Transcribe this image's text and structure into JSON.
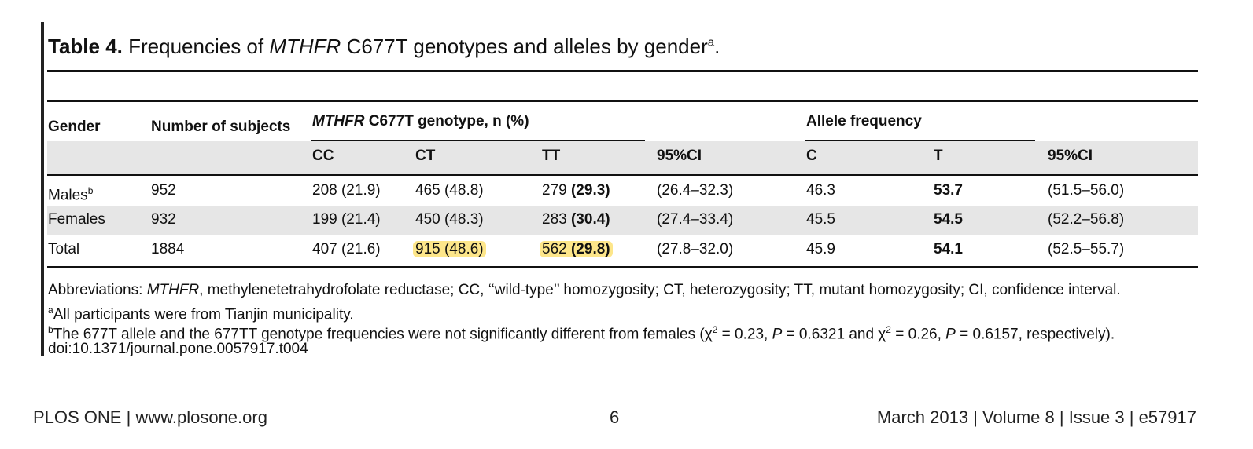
{
  "title": {
    "label": "Table 4.",
    "pre": "Frequencies of",
    "gene": "MTHFR",
    "post": "C677T genotypes and alleles by gender",
    "sup": "a",
    "end": "."
  },
  "headers": {
    "gender": "Gender",
    "subjects": "Number of subjects",
    "genotype_gene": "MTHFR",
    "genotype_rest": "C677T genotype, n (%)",
    "allele": "Allele frequency",
    "cc": "CC",
    "ct": "CT",
    "tt": "TT",
    "ci1": "95%CI",
    "c": "C",
    "t": "T",
    "ci2": "95%CI"
  },
  "rows": [
    {
      "gender": "Males",
      "gender_sup": "b",
      "subjects": "952",
      "cc": "208 (21.9)",
      "ct": "465 (48.8)",
      "tt_n": "279",
      "tt_pct": "(29.3)",
      "ci1": "(26.4–32.3)",
      "c": "46.3",
      "t": "53.7",
      "ci2": "(51.5–56.0)"
    },
    {
      "gender": "Females",
      "gender_sup": "",
      "subjects": "932",
      "cc": "199 (21.4)",
      "ct": "450 (48.3)",
      "tt_n": "283",
      "tt_pct": "(30.4)",
      "ci1": "(27.4–33.4)",
      "c": "45.5",
      "t": "54.5",
      "ci2": "(52.2–56.8)"
    },
    {
      "gender": "Total",
      "gender_sup": "",
      "subjects": "1884",
      "cc": "407 (21.6)",
      "ct": "915 (48.6)",
      "tt_n": "562",
      "tt_pct": "(29.8)",
      "ci1": "(27.8–32.0)",
      "c": "45.9",
      "t": "54.1",
      "ci2": "(52.5–55.7)"
    }
  ],
  "notes": {
    "abbr_pre": "Abbreviations:",
    "abbr_gene": "MTHFR",
    "abbr_rest": ", methylenetetrahydrofolate reductase; CC, ‘‘wild-type’’ homozygosity; CT, heterozygosity; TT, mutant homozygosity; CI, confidence interval.",
    "a_sup": "a",
    "a_text": "All participants were from Tianjin municipality.",
    "b_sup": "b",
    "b_text1": "The 677T allele and the 677TT genotype frequencies were not significantly different from females (χ",
    "b_exp1": "2",
    "b_text2": " = 0.23, ",
    "b_p1": "P",
    "b_text3": " = 0.6321 and χ",
    "b_exp2": "2",
    "b_text4": " = 0.26, ",
    "b_p2": "P",
    "b_text5": " = 0.6157, respectively).",
    "doi": "doi:10.1371/journal.pone.0057917.t004"
  },
  "footer": {
    "left": "PLOS ONE | www.plosone.org",
    "page": "6",
    "right": "March 2013 | Volume 8 | Issue 3 | e57917"
  },
  "colors": {
    "highlight": "#fde68a",
    "band": "#e6e6e6"
  }
}
